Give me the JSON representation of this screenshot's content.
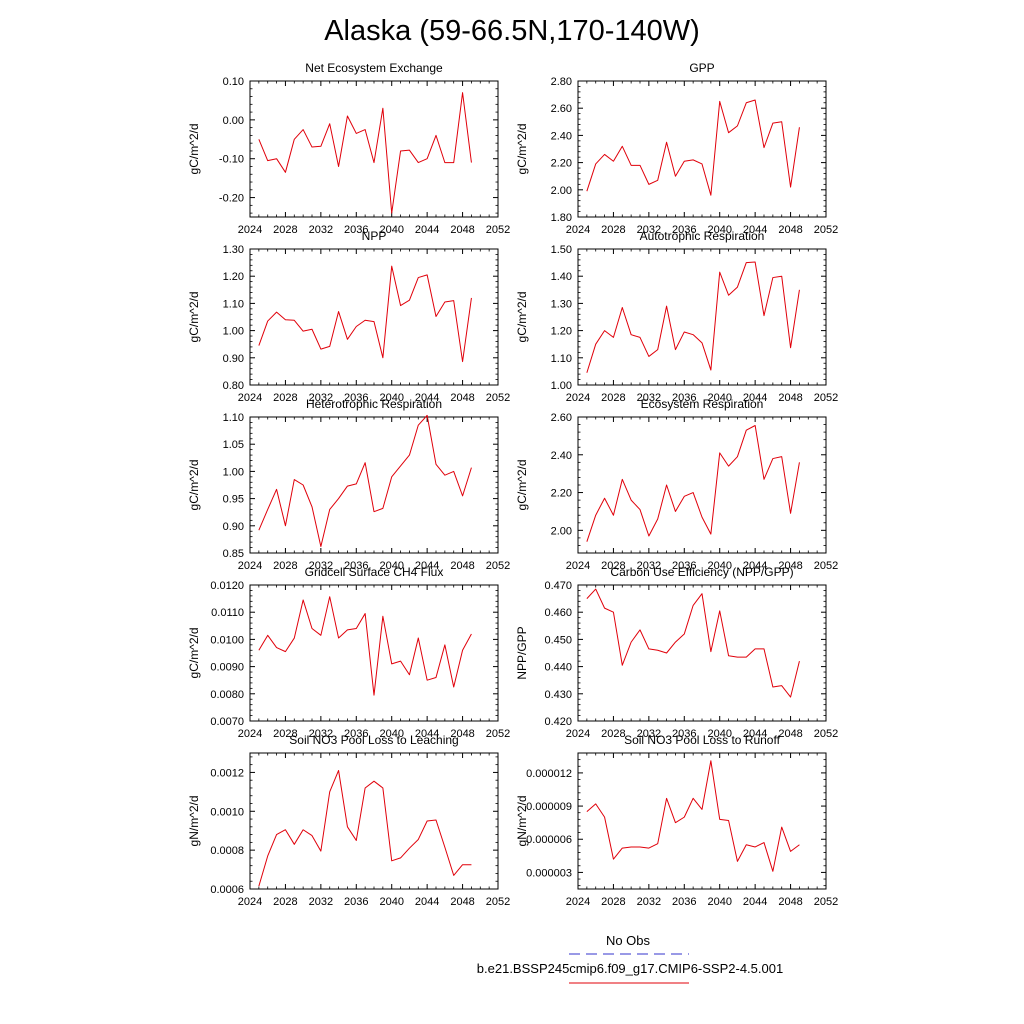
{
  "page_title": "Alaska (59-66.5N,170-140W)",
  "legend": {
    "obs_label": "No Obs",
    "obs_color": "#3333cc",
    "model_label": "b.e21.BSSP245cmip6.f09_g17.CMIP6-SSP2-4.5.001",
    "model_color": "#e0000a"
  },
  "chart_data": [
    {
      "type": "line",
      "title": "Net Ecosystem Exchange",
      "ylabel": "gC/m^2/d",
      "xlim": [
        2024,
        2052
      ],
      "xticks": [
        "2024",
        "2028",
        "2032",
        "2036",
        "2040",
        "2044",
        "2048",
        "2052"
      ],
      "ylim": [
        -0.25,
        0.1
      ],
      "yticks": [
        "-0.20",
        "-0.10",
        "0.00",
        "0.10"
      ],
      "x": [
        2025,
        2026,
        2027,
        2028,
        2029,
        2030,
        2031,
        2032,
        2033,
        2034,
        2035,
        2036,
        2037,
        2038,
        2039,
        2040,
        2041,
        2042,
        2043,
        2044,
        2045,
        2046,
        2047,
        2048,
        2049
      ],
      "series": [
        {
          "name": "b.e21.BSSP245cmip6.f09_g17.CMIP6-SSP2-4.5.001",
          "values": [
            -0.05,
            -0.105,
            -0.1,
            -0.135,
            -0.05,
            -0.025,
            -0.07,
            -0.068,
            -0.01,
            -0.12,
            0.01,
            -0.035,
            -0.025,
            -0.11,
            0.03,
            -0.24,
            -0.08,
            -0.078,
            -0.11,
            -0.1,
            -0.04,
            -0.11,
            -0.11,
            0.07,
            -0.11
          ]
        }
      ]
    },
    {
      "type": "line",
      "title": "GPP",
      "ylabel": "gC/m^2/d",
      "xlim": [
        2024,
        2052
      ],
      "xticks": [
        "2024",
        "2028",
        "2032",
        "2036",
        "2040",
        "2044",
        "2048",
        "2052"
      ],
      "ylim": [
        1.8,
        2.8
      ],
      "yticks": [
        "1.80",
        "2.00",
        "2.20",
        "2.40",
        "2.60",
        "2.80"
      ],
      "x": [
        2025,
        2026,
        2027,
        2028,
        2029,
        2030,
        2031,
        2032,
        2033,
        2034,
        2035,
        2036,
        2037,
        2038,
        2039,
        2040,
        2041,
        2042,
        2043,
        2044,
        2045,
        2046,
        2047,
        2048,
        2049
      ],
      "series": [
        {
          "name": "b.e21.BSSP245cmip6.f09_g17.CMIP6-SSP2-4.5.001",
          "values": [
            1.99,
            2.19,
            2.26,
            2.21,
            2.32,
            2.18,
            2.18,
            2.04,
            2.07,
            2.35,
            2.1,
            2.21,
            2.22,
            2.19,
            1.96,
            2.65,
            2.42,
            2.47,
            2.64,
            2.66,
            2.31,
            2.49,
            2.5,
            2.02,
            2.46
          ]
        }
      ]
    },
    {
      "type": "line",
      "title": "NPP",
      "ylabel": "gC/m^2/d",
      "xlim": [
        2024,
        2052
      ],
      "xticks": [
        "2024",
        "2028",
        "2032",
        "2036",
        "2040",
        "2044",
        "2048",
        "2052"
      ],
      "ylim": [
        0.8,
        1.3
      ],
      "yticks": [
        "0.80",
        "0.90",
        "1.00",
        "1.10",
        "1.20",
        "1.30"
      ],
      "x": [
        2025,
        2026,
        2027,
        2028,
        2029,
        2030,
        2031,
        2032,
        2033,
        2034,
        2035,
        2036,
        2037,
        2038,
        2039,
        2040,
        2041,
        2042,
        2043,
        2044,
        2045,
        2046,
        2047,
        2048,
        2049
      ],
      "series": [
        {
          "name": "b.e21.BSSP245cmip6.f09_g17.CMIP6-SSP2-4.5.001",
          "values": [
            0.945,
            1.035,
            1.068,
            1.04,
            1.038,
            0.998,
            1.005,
            0.932,
            0.942,
            1.07,
            0.968,
            1.015,
            1.038,
            1.033,
            0.9,
            1.237,
            1.092,
            1.112,
            1.195,
            1.205,
            1.052,
            1.105,
            1.11,
            0.886,
            1.12
          ]
        }
      ]
    },
    {
      "type": "line",
      "title": "Autotrophic Respiration",
      "ylabel": "gC/m^2/d",
      "xlim": [
        2024,
        2052
      ],
      "xticks": [
        "2024",
        "2028",
        "2032",
        "2036",
        "2040",
        "2044",
        "2048",
        "2052"
      ],
      "ylim": [
        1.0,
        1.5
      ],
      "yticks": [
        "1.00",
        "1.10",
        "1.20",
        "1.30",
        "1.40",
        "1.50"
      ],
      "x": [
        2025,
        2026,
        2027,
        2028,
        2029,
        2030,
        2031,
        2032,
        2033,
        2034,
        2035,
        2036,
        2037,
        2038,
        2039,
        2040,
        2041,
        2042,
        2043,
        2044,
        2045,
        2046,
        2047,
        2048,
        2049
      ],
      "series": [
        {
          "name": "b.e21.BSSP245cmip6.f09_g17.CMIP6-SSP2-4.5.001",
          "values": [
            1.045,
            1.15,
            1.2,
            1.175,
            1.285,
            1.185,
            1.175,
            1.105,
            1.13,
            1.29,
            1.13,
            1.195,
            1.185,
            1.155,
            1.055,
            1.415,
            1.33,
            1.36,
            1.45,
            1.452,
            1.255,
            1.395,
            1.4,
            1.137,
            1.35
          ]
        }
      ]
    },
    {
      "type": "line",
      "title": "Heterotrophic Respiration",
      "ylabel": "gC/m^2/d",
      "xlim": [
        2024,
        2052
      ],
      "xticks": [
        "2024",
        "2028",
        "2032",
        "2036",
        "2040",
        "2044",
        "2048",
        "2052"
      ],
      "ylim": [
        0.85,
        1.1
      ],
      "yticks": [
        "0.85",
        "0.90",
        "0.95",
        "1.00",
        "1.05",
        "1.10"
      ],
      "x": [
        2025,
        2026,
        2027,
        2028,
        2029,
        2030,
        2031,
        2032,
        2033,
        2034,
        2035,
        2036,
        2037,
        2038,
        2039,
        2040,
        2041,
        2042,
        2043,
        2044,
        2045,
        2046,
        2047,
        2048,
        2049
      ],
      "series": [
        {
          "name": "b.e21.BSSP245cmip6.f09_g17.CMIP6-SSP2-4.5.001",
          "values": [
            0.892,
            0.93,
            0.967,
            0.9,
            0.985,
            0.975,
            0.935,
            0.862,
            0.93,
            0.95,
            0.973,
            0.977,
            1.016,
            0.926,
            0.932,
            0.99,
            1.01,
            1.03,
            1.085,
            1.103,
            1.013,
            0.993,
            1.0,
            0.955,
            1.007
          ]
        }
      ]
    },
    {
      "type": "line",
      "title": "Ecosystem Respiration",
      "ylabel": "gC/m^2/d",
      "xlim": [
        2024,
        2052
      ],
      "xticks": [
        "2024",
        "2028",
        "2032",
        "2036",
        "2040",
        "2044",
        "2048",
        "2052"
      ],
      "ylim": [
        1.88,
        2.6
      ],
      "yticks": [
        "2.00",
        "2.20",
        "2.40",
        "2.60"
      ],
      "x": [
        2025,
        2026,
        2027,
        2028,
        2029,
        2030,
        2031,
        2032,
        2033,
        2034,
        2035,
        2036,
        2037,
        2038,
        2039,
        2040,
        2041,
        2042,
        2043,
        2044,
        2045,
        2046,
        2047,
        2048,
        2049
      ],
      "series": [
        {
          "name": "b.e21.BSSP245cmip6.f09_g17.CMIP6-SSP2-4.5.001",
          "values": [
            1.94,
            2.08,
            2.17,
            2.08,
            2.27,
            2.16,
            2.11,
            1.97,
            2.06,
            2.24,
            2.1,
            2.18,
            2.2,
            2.07,
            1.98,
            2.41,
            2.34,
            2.39,
            2.53,
            2.555,
            2.27,
            2.38,
            2.39,
            2.09,
            2.36
          ]
        }
      ]
    },
    {
      "type": "line",
      "title": "Gridcell Surface CH4 Flux",
      "ylabel": "gC/m^2/d",
      "xlim": [
        2024,
        2052
      ],
      "xticks": [
        "2024",
        "2028",
        "2032",
        "2036",
        "2040",
        "2044",
        "2048",
        "2052"
      ],
      "ylim": [
        0.007,
        0.012
      ],
      "yticks": [
        "0.0070",
        "0.0080",
        "0.0090",
        "0.0100",
        "0.0110",
        "0.0120"
      ],
      "x": [
        2025,
        2026,
        2027,
        2028,
        2029,
        2030,
        2031,
        2032,
        2033,
        2034,
        2035,
        2036,
        2037,
        2038,
        2039,
        2040,
        2041,
        2042,
        2043,
        2044,
        2045,
        2046,
        2047,
        2048,
        2049
      ],
      "series": [
        {
          "name": "b.e21.BSSP245cmip6.f09_g17.CMIP6-SSP2-4.5.001",
          "values": [
            0.0096,
            0.01015,
            0.0097,
            0.00955,
            0.01005,
            0.01145,
            0.0104,
            0.01015,
            0.01157,
            0.01005,
            0.01035,
            0.0104,
            0.01095,
            0.00795,
            0.01085,
            0.0091,
            0.0092,
            0.0087,
            0.01005,
            0.0085,
            0.0086,
            0.0098,
            0.00825,
            0.0096,
            0.0102
          ]
        }
      ]
    },
    {
      "type": "line",
      "title": "Carbon Use Efficiency (NPP/GPP)",
      "ylabel": "NPP/GPP",
      "xlim": [
        2024,
        2052
      ],
      "xticks": [
        "2024",
        "2028",
        "2032",
        "2036",
        "2040",
        "2044",
        "2048",
        "2052"
      ],
      "ylim": [
        0.42,
        0.47
      ],
      "yticks": [
        "0.420",
        "0.430",
        "0.440",
        "0.450",
        "0.460",
        "0.470"
      ],
      "x": [
        2025,
        2026,
        2027,
        2028,
        2029,
        2030,
        2031,
        2032,
        2033,
        2034,
        2035,
        2036,
        2037,
        2038,
        2039,
        2040,
        2041,
        2042,
        2043,
        2044,
        2045,
        2046,
        2047,
        2048,
        2049
      ],
      "series": [
        {
          "name": "b.e21.BSSP245cmip6.f09_g17.CMIP6-SSP2-4.5.001",
          "values": [
            0.465,
            0.4685,
            0.4615,
            0.46,
            0.4405,
            0.449,
            0.4535,
            0.4465,
            0.446,
            0.445,
            0.449,
            0.452,
            0.4625,
            0.4668,
            0.4455,
            0.4605,
            0.444,
            0.4435,
            0.4435,
            0.4465,
            0.4465,
            0.4325,
            0.433,
            0.4288,
            0.442
          ]
        }
      ]
    },
    {
      "type": "line",
      "title": "Soil NO3 Pool Loss to Leaching",
      "ylabel": "gN/m^2/d",
      "xlim": [
        2024,
        2052
      ],
      "xticks": [
        "2024",
        "2028",
        "2032",
        "2036",
        "2040",
        "2044",
        "2048",
        "2052"
      ],
      "ylim": [
        0.0006,
        0.0013
      ],
      "yticks": [
        "0.0006",
        "0.0008",
        "0.0010",
        "0.0012"
      ],
      "x": [
        2025,
        2026,
        2027,
        2028,
        2029,
        2030,
        2031,
        2032,
        2033,
        2034,
        2035,
        2036,
        2037,
        2038,
        2039,
        2040,
        2041,
        2042,
        2043,
        2044,
        2045,
        2046,
        2047,
        2048,
        2049
      ],
      "series": [
        {
          "name": "b.e21.BSSP245cmip6.f09_g17.CMIP6-SSP2-4.5.001",
          "values": [
            0.000615,
            0.00077,
            0.00088,
            0.000905,
            0.00083,
            0.000905,
            0.000875,
            0.000795,
            0.0011,
            0.00121,
            0.00092,
            0.00085,
            0.00112,
            0.001155,
            0.00112,
            0.000745,
            0.00076,
            0.00081,
            0.000855,
            0.00095,
            0.000955,
            0.000815,
            0.00067,
            0.000725,
            0.000725
          ]
        }
      ]
    },
    {
      "type": "line",
      "title": "Soil NO3 Pool Loss to Runoff",
      "ylabel": "gN/m^2/d",
      "xlim": [
        2024,
        2052
      ],
      "xticks": [
        "2024",
        "2028",
        "2032",
        "2036",
        "2040",
        "2044",
        "2048",
        "2052"
      ],
      "ylim": [
        1.5e-06,
        1.38e-05
      ],
      "yticks": [
        "0.000003",
        "0.000006",
        "0.000009",
        "0.000012"
      ],
      "x": [
        2025,
        2026,
        2027,
        2028,
        2029,
        2030,
        2031,
        2032,
        2033,
        2034,
        2035,
        2036,
        2037,
        2038,
        2039,
        2040,
        2041,
        2042,
        2043,
        2044,
        2045,
        2046,
        2047,
        2048,
        2049
      ],
      "series": [
        {
          "name": "b.e21.BSSP245cmip6.f09_g17.CMIP6-SSP2-4.5.001",
          "values": [
            8.5e-06,
            9.2e-06,
            8e-06,
            4.2e-06,
            5.2e-06,
            5.3e-06,
            5.3e-06,
            5.2e-06,
            5.6e-06,
            9.7e-06,
            7.5e-06,
            8e-06,
            9.7e-06,
            8.7e-06,
            1.31e-05,
            7.8e-06,
            7.7e-06,
            4e-06,
            5.5e-06,
            5.3e-06,
            5.7e-06,
            3.1e-06,
            7.1e-06,
            4.9e-06,
            5.5e-06
          ]
        }
      ]
    }
  ]
}
